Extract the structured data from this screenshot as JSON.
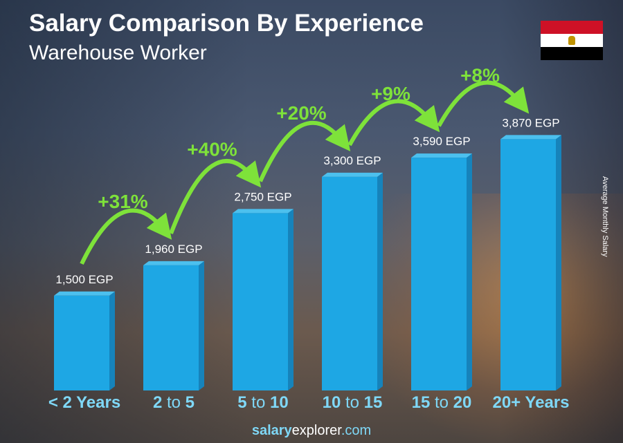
{
  "title": "Salary Comparison By Experience",
  "subtitle": "Warehouse Worker",
  "footer": {
    "brand_bold": "salary",
    "brand_regular": "explorer",
    "brand_tld": ".com"
  },
  "flag": {
    "country": "Egypt",
    "colors": [
      "#ce1126",
      "#ffffff",
      "#000000"
    ],
    "emblem_color": "#c09300"
  },
  "chart_data": {
    "type": "bar",
    "title": "Salary Comparison By Experience",
    "subtitle": "Warehouse Worker",
    "ylabel": "Average Monthly Salary",
    "currency": "EGP",
    "bar_color": "#1ea7e4",
    "categories": [
      {
        "label": "< 2 Years",
        "parts": [
          "< 2 Years"
        ]
      },
      {
        "label": "2 to 5",
        "parts": [
          "2",
          " to ",
          "5"
        ]
      },
      {
        "label": "5 to 10",
        "parts": [
          "5",
          " to ",
          "10"
        ]
      },
      {
        "label": "10 to 15",
        "parts": [
          "10",
          " to ",
          "15"
        ]
      },
      {
        "label": "15 to 20",
        "parts": [
          "15",
          " to ",
          "20"
        ]
      },
      {
        "label": "20+ Years",
        "parts": [
          "20+ Years"
        ]
      }
    ],
    "values": [
      1500,
      1960,
      2750,
      3300,
      3590,
      3870
    ],
    "value_labels": [
      "1,500 EGP",
      "1,960 EGP",
      "2,750 EGP",
      "3,300 EGP",
      "3,590 EGP",
      "3,870 EGP"
    ],
    "changes": [
      "+31%",
      "+40%",
      "+20%",
      "+9%",
      "+8%"
    ],
    "change_color": "#7ee23a"
  }
}
